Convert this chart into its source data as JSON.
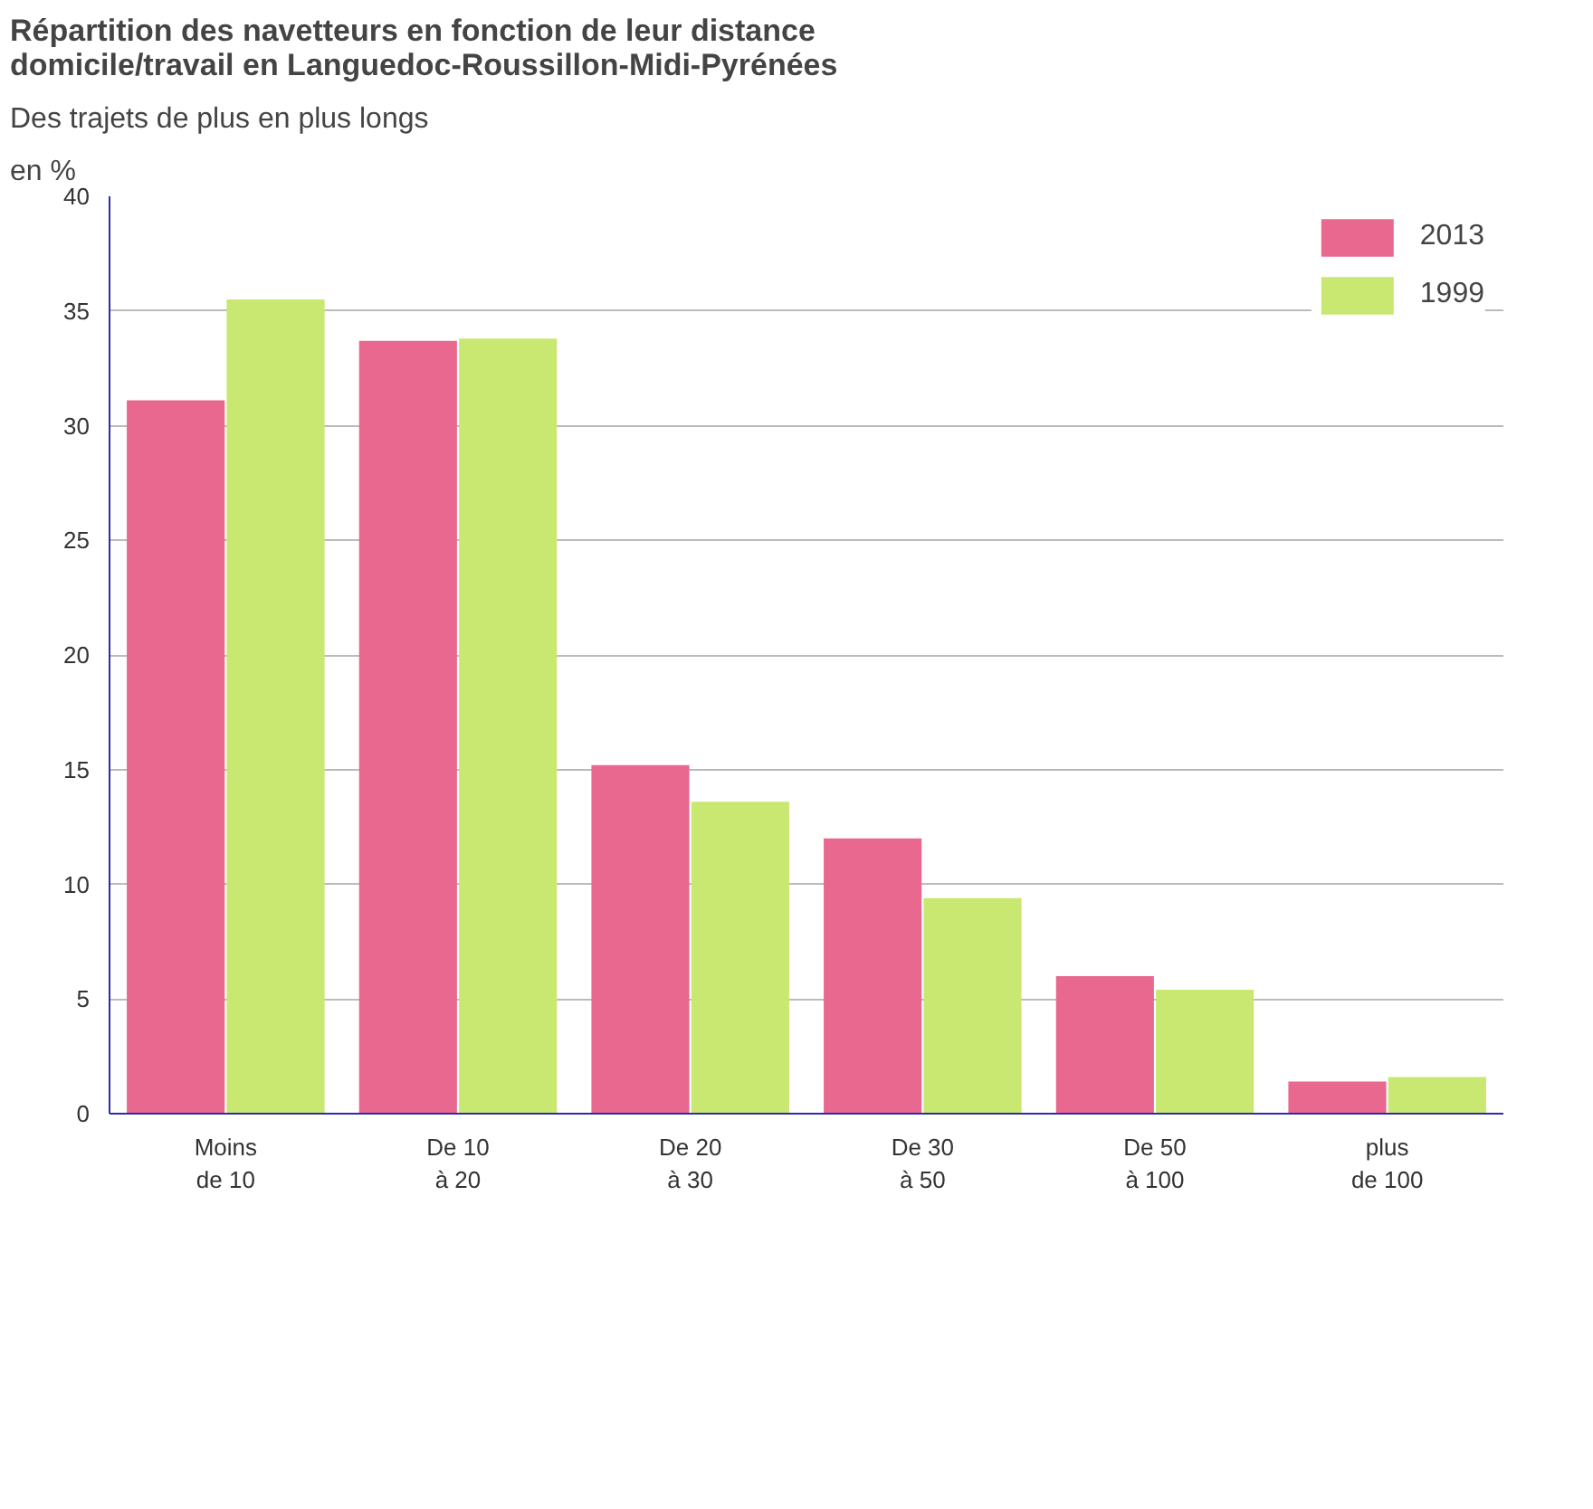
{
  "chart_data": {
    "type": "bar",
    "title": "Répartition des navetteurs en fonction de leur distance\ndomicile/travail en Languedoc-Roussillon-Midi-Pyrénées",
    "subtitle": "Des trajets de plus en plus longs",
    "ylabel": "en %",
    "categories": [
      "Moins\nde 10",
      "De 10\nà 20",
      "De 20\nà 30",
      "De 30\nà 50",
      "De 50\nà 100",
      "plus\nde 100"
    ],
    "series": [
      {
        "name": "2013",
        "color": "#e8688f",
        "values": [
          31.1,
          33.7,
          15.2,
          12.0,
          6.0,
          1.4
        ]
      },
      {
        "name": "1999",
        "color": "#c8e872",
        "values": [
          35.5,
          33.8,
          13.6,
          9.4,
          5.4,
          1.6
        ]
      }
    ],
    "ylim": [
      0,
      40
    ],
    "yticks": [
      0,
      5,
      10,
      15,
      20,
      25,
      30,
      35,
      40
    ],
    "grid": "y",
    "legend": "top right"
  }
}
